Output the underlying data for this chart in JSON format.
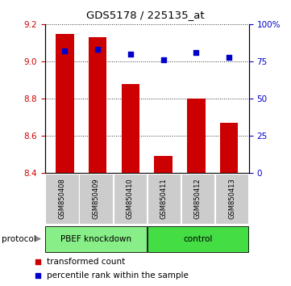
{
  "title": "GDS5178 / 225135_at",
  "samples": [
    "GSM850408",
    "GSM850409",
    "GSM850410",
    "GSM850411",
    "GSM850412",
    "GSM850413"
  ],
  "bar_values": [
    9.15,
    9.13,
    8.88,
    8.49,
    8.8,
    8.67
  ],
  "percentile_values": [
    82,
    83,
    80,
    76,
    81,
    78
  ],
  "bar_color": "#cc0000",
  "percentile_color": "#0000cc",
  "bar_bottom": 8.4,
  "ylim_left": [
    8.4,
    9.2
  ],
  "ylim_right": [
    0,
    100
  ],
  "yticks_left": [
    8.4,
    8.6,
    8.8,
    9.0,
    9.2
  ],
  "ytick_labels_left": [
    "8.4",
    "8.6",
    "8.8",
    "9.0",
    "9.2"
  ],
  "yticks_right": [
    0,
    25,
    50,
    75,
    100
  ],
  "ytick_labels_right": [
    "0",
    "25",
    "50",
    "75",
    "100%"
  ],
  "groups": [
    {
      "label": "PBEF knockdown",
      "indices": [
        0,
        1,
        2
      ],
      "color": "#88ee88"
    },
    {
      "label": "control",
      "indices": [
        3,
        4,
        5
      ],
      "color": "#44dd44"
    }
  ],
  "protocol_label": "protocol",
  "legend_items": [
    {
      "label": "transformed count",
      "color": "#cc0000"
    },
    {
      "label": "percentile rank within the sample",
      "color": "#0000cc"
    }
  ],
  "sample_bg": "#cccccc",
  "plot_bg": "#ffffff"
}
